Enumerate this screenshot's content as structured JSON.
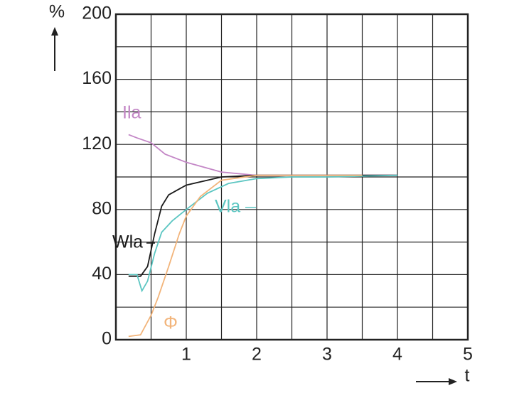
{
  "chart_data": {
    "type": "line",
    "y_label": "%",
    "x_label": "t",
    "xlim": [
      0,
      5
    ],
    "xticks": [
      1,
      2,
      3,
      4,
      5
    ],
    "x_minor_ticks": [
      0.5,
      1.5,
      2.5,
      3.5,
      4.5
    ],
    "ylim": [
      0,
      200
    ],
    "yticks": [
      0,
      40,
      80,
      120,
      160,
      200
    ],
    "y_minor_ticks": [
      20,
      60,
      100,
      140,
      180
    ],
    "grid": true,
    "series": [
      {
        "name": "Ila",
        "color": "#c386c6",
        "x": [
          0.18,
          0.3,
          0.5,
          0.7,
          1.0,
          1.5,
          2.0,
          2.5,
          3.0,
          3.5,
          4.0
        ],
        "values": [
          126,
          124,
          121,
          114,
          109,
          103,
          101,
          101,
          101,
          101,
          101
        ]
      },
      {
        "name": "Wla",
        "color": "#1a1a1a",
        "x": [
          0.18,
          0.35,
          0.45,
          0.55,
          0.65,
          0.75,
          1.0,
          1.3,
          1.5,
          2.0,
          3.0,
          4.0
        ],
        "values": [
          39,
          39,
          45,
          65,
          82,
          89,
          95,
          98,
          100,
          101,
          101,
          101
        ]
      },
      {
        "name": "Vla",
        "color": "#5cc6c2",
        "x": [
          0.18,
          0.3,
          0.37,
          0.45,
          0.55,
          0.65,
          0.8,
          1.0,
          1.3,
          1.6,
          2.0,
          2.5,
          3.0,
          4.0
        ],
        "values": [
          40,
          40,
          30,
          36,
          53,
          66,
          73,
          80,
          90,
          96,
          99,
          100,
          100,
          101
        ]
      },
      {
        "name": "Φ",
        "color": "#f2b47a",
        "x": [
          0.18,
          0.35,
          0.5,
          0.6,
          0.75,
          0.9,
          1.0,
          1.2,
          1.5,
          2.0,
          3.0,
          3.5
        ],
        "values": [
          2,
          3,
          15,
          26,
          45,
          65,
          76,
          88,
          98,
          101,
          101,
          101
        ]
      }
    ]
  }
}
